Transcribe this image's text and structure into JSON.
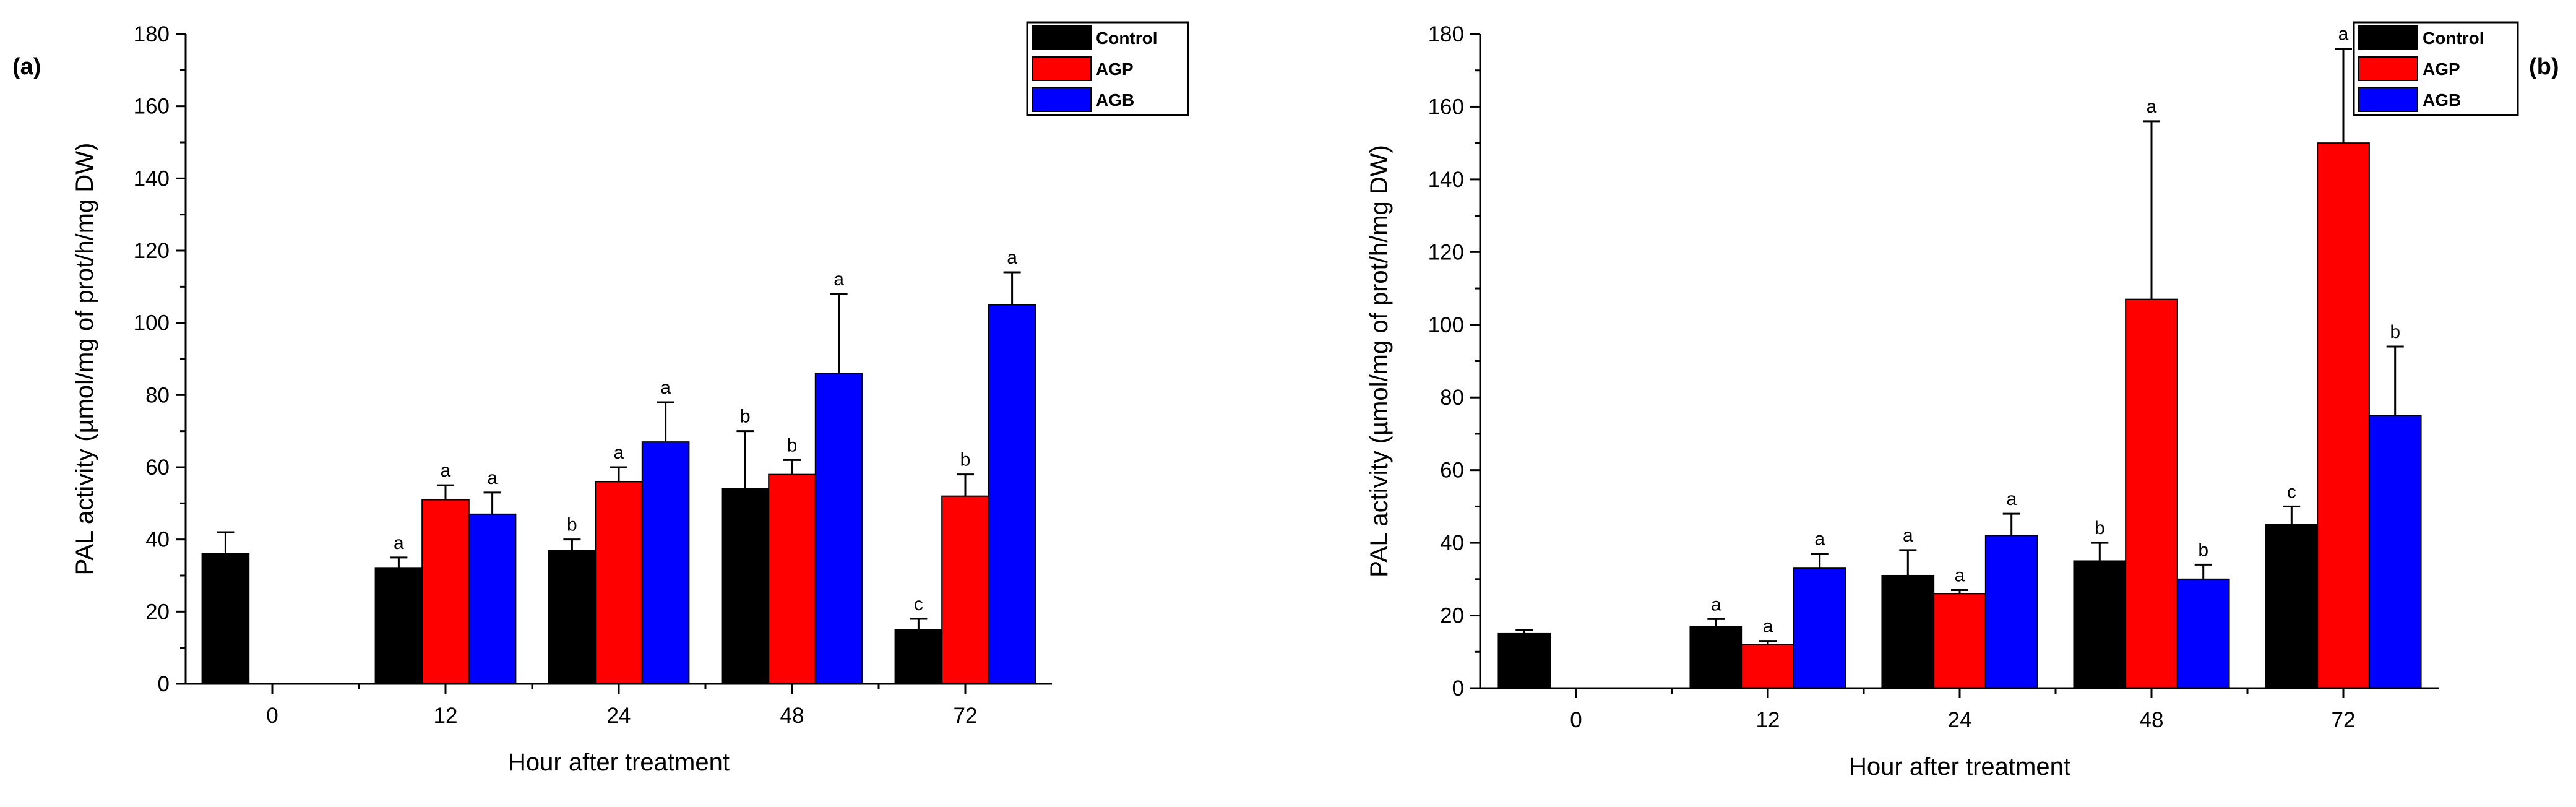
{
  "chart_data": [
    {
      "type": "bar",
      "panel_label": "(a)",
      "categories": [
        "0",
        "12",
        "24",
        "48",
        "72"
      ],
      "series": [
        {
          "name": "Control",
          "color": "#000000",
          "values": [
            36,
            32,
            37,
            54,
            15
          ],
          "errors": [
            6,
            3,
            3,
            16,
            3
          ],
          "letters": [
            "",
            "a",
            "b",
            "b",
            "c"
          ]
        },
        {
          "name": "AGP",
          "color": "#ff0000",
          "values": [
            null,
            51,
            56,
            58,
            52
          ],
          "errors": [
            null,
            4,
            4,
            4,
            6
          ],
          "letters": [
            "",
            "a",
            "a",
            "b",
            "b"
          ]
        },
        {
          "name": "AGB",
          "color": "#0000ff",
          "values": [
            null,
            47,
            67,
            86,
            105
          ],
          "errors": [
            null,
            6,
            11,
            22,
            9
          ],
          "letters": [
            "",
            "a",
            "a",
            "a",
            "a"
          ]
        }
      ],
      "xlabel": "Hour after treatment",
      "ylabel": "PAL activity (µmol/mg of prot/h/mg DW)",
      "ylim": [
        0,
        180
      ],
      "yticks": [
        0,
        20,
        40,
        60,
        80,
        100,
        120,
        140,
        160,
        180
      ],
      "legend_position": "top-right"
    },
    {
      "type": "bar",
      "panel_label": "(b)",
      "categories": [
        "0",
        "12",
        "24",
        "48",
        "72"
      ],
      "series": [
        {
          "name": "Control",
          "color": "#000000",
          "values": [
            15,
            17,
            31,
            35,
            45
          ],
          "errors": [
            1,
            2,
            7,
            5,
            5
          ],
          "letters": [
            "",
            "a",
            "a",
            "b",
            "c"
          ]
        },
        {
          "name": "AGP",
          "color": "#ff0000",
          "values": [
            null,
            12,
            26,
            107,
            150
          ],
          "errors": [
            null,
            1,
            1,
            49,
            26
          ],
          "letters": [
            "",
            "a",
            "a",
            "a",
            "a"
          ]
        },
        {
          "name": "AGB",
          "color": "#0000ff",
          "values": [
            null,
            33,
            42,
            30,
            75
          ],
          "errors": [
            null,
            4,
            6,
            4,
            19
          ],
          "letters": [
            "",
            "a",
            "a",
            "b",
            "b"
          ]
        }
      ],
      "xlabel": "Hour after treatment",
      "ylabel": "PAL activity (µmol/mg of prot/h/mg DW)",
      "ylim": [
        0,
        180
      ],
      "yticks": [
        0,
        20,
        40,
        60,
        80,
        100,
        120,
        140,
        160,
        180
      ],
      "legend_position": "top-right"
    }
  ]
}
